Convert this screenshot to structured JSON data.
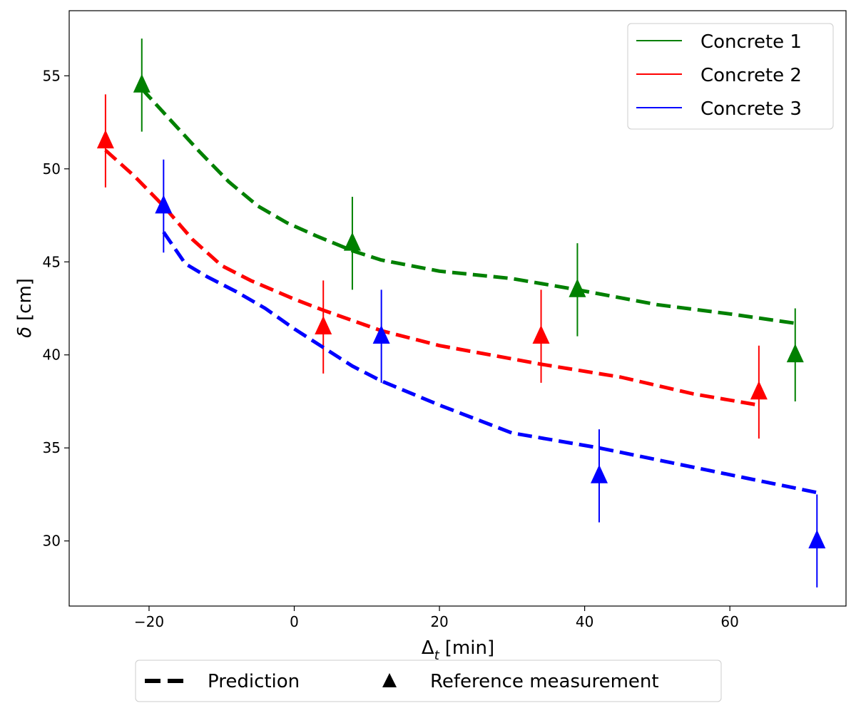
{
  "chart_data": {
    "type": "line",
    "xlabel": "Δ",
    "xlabel_sub": "t",
    "xlabel_unit": "[min]",
    "ylabel_symbol": "δ",
    "ylabel_unit": "[cm]",
    "xlim": [
      -31,
      76
    ],
    "ylim": [
      26.5,
      58.5
    ],
    "xticks": [
      -20,
      0,
      20,
      40,
      60
    ],
    "xtick_labels": [
      "−20",
      "0",
      "20",
      "40",
      "60"
    ],
    "yticks": [
      30,
      35,
      40,
      45,
      50,
      55
    ],
    "ytick_labels": [
      "30",
      "35",
      "40",
      "45",
      "50",
      "55"
    ],
    "grid": false,
    "legend_series": {
      "placement": "top-right",
      "entries": [
        "Concrete 1",
        "Concrete 2",
        "Concrete 3"
      ]
    },
    "legend_style": {
      "placement": "bottom-center",
      "entries": [
        "Prediction",
        "Reference measurement"
      ]
    },
    "series": [
      {
        "name": "Concrete 1",
        "color": "#008000",
        "prediction": {
          "x": [
            -21,
            -17,
            -13,
            -9,
            -5,
            -1,
            3,
            8,
            12,
            20,
            30,
            39,
            50,
            60,
            69
          ],
          "y": [
            54.3,
            52.6,
            50.9,
            49.3,
            48.0,
            47.1,
            46.4,
            45.6,
            45.1,
            44.5,
            44.1,
            43.5,
            42.7,
            42.2,
            41.7
          ]
        },
        "measurements": {
          "x": [
            -21,
            8,
            39,
            69
          ],
          "y": [
            54.5,
            46.0,
            43.5,
            40.0
          ],
          "err": [
            2.5,
            2.5,
            2.5,
            2.5
          ]
        }
      },
      {
        "name": "Concrete 2",
        "color": "#ff0000",
        "prediction": {
          "x": [
            -26,
            -22,
            -18,
            -14,
            -10,
            -6,
            0,
            4,
            12,
            20,
            34,
            45,
            55,
            64
          ],
          "y": [
            51.0,
            49.6,
            48.0,
            46.2,
            44.8,
            44.0,
            43.0,
            42.4,
            41.3,
            40.5,
            39.5,
            38.8,
            37.9,
            37.3
          ]
        },
        "measurements": {
          "x": [
            -26,
            4,
            34,
            64
          ],
          "y": [
            51.5,
            41.5,
            41.0,
            38.0
          ],
          "err": [
            2.5,
            2.5,
            2.5,
            2.5
          ]
        }
      },
      {
        "name": "Concrete 3",
        "color": "#0000ff",
        "prediction": {
          "x": [
            -18,
            -15,
            -12,
            -8,
            -4,
            0,
            4,
            8,
            12,
            20,
            30,
            42,
            52,
            62,
            72
          ],
          "y": [
            46.6,
            44.9,
            44.2,
            43.4,
            42.5,
            41.4,
            40.4,
            39.4,
            38.6,
            37.3,
            35.8,
            35.0,
            34.2,
            33.4,
            32.6
          ]
        },
        "measurements": {
          "x": [
            -18,
            12,
            42,
            72
          ],
          "y": [
            48.0,
            41.0,
            33.5,
            30.0
          ],
          "err": [
            2.5,
            2.5,
            2.5,
            2.5
          ]
        }
      }
    ]
  }
}
